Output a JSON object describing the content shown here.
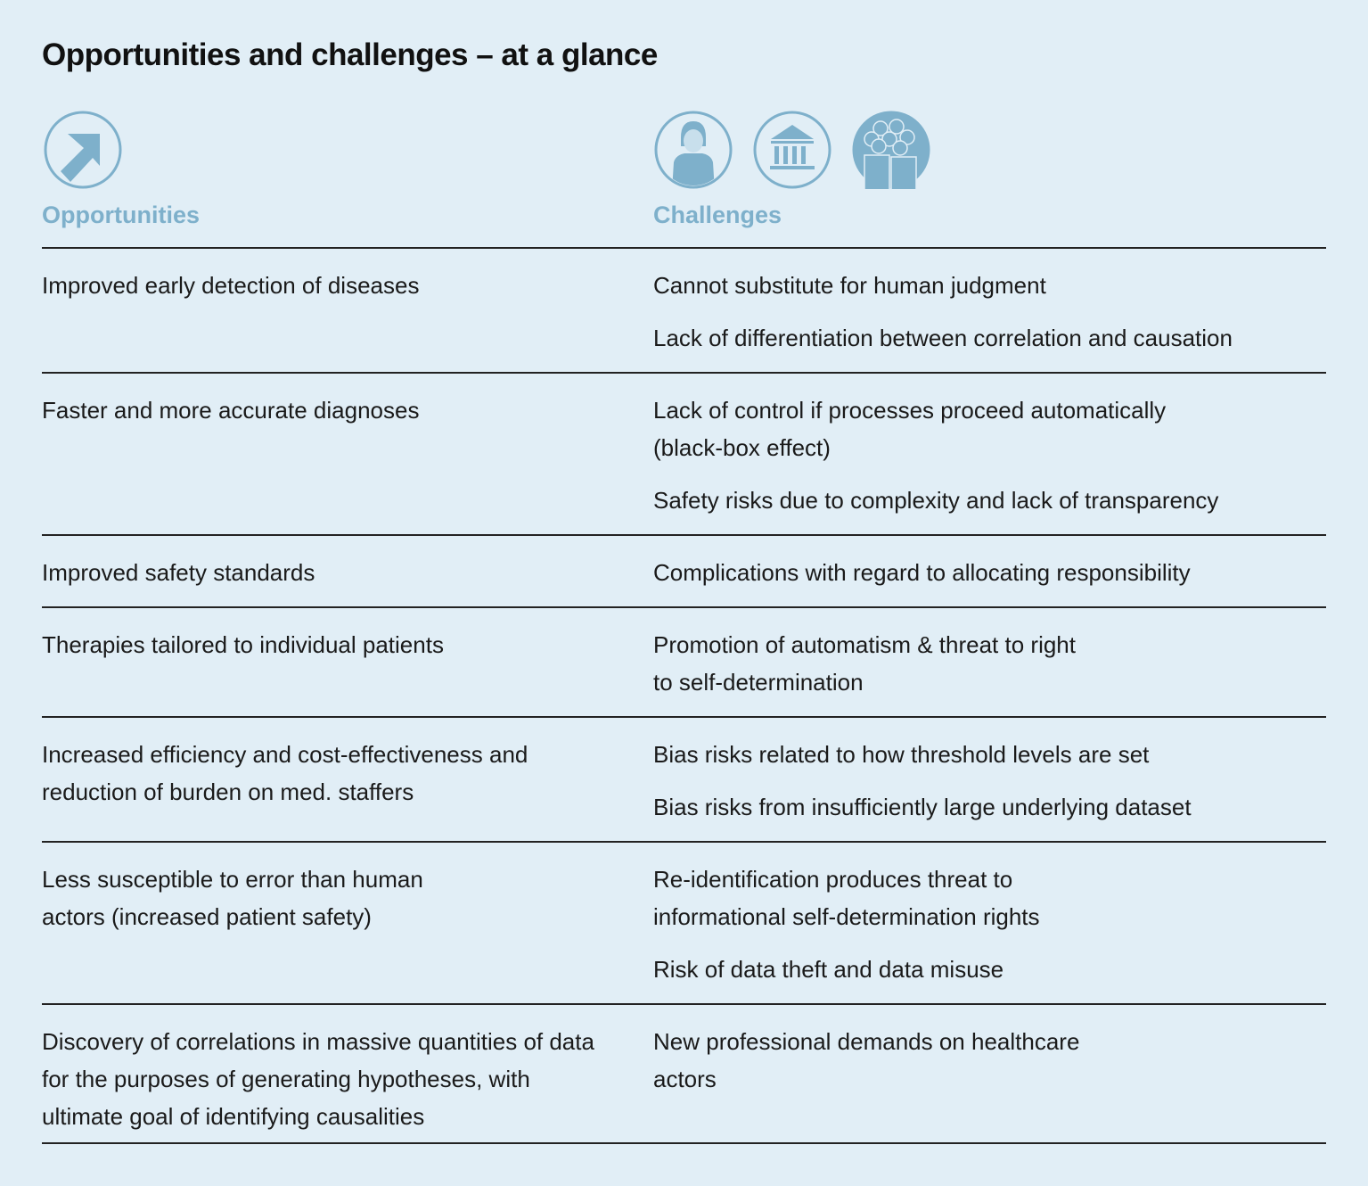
{
  "title": "Opportunities and challenges – at a glance",
  "headers": {
    "opportunities": "Opportunities",
    "challenges": "Challenges"
  },
  "accent_color": "#7eb0cb",
  "icons": [
    "arrow-up-right-icon",
    "person-icon",
    "institution-icon",
    "group-icon"
  ],
  "rows": [
    {
      "opportunity": "Improved early detection of diseases",
      "challenges": [
        "Cannot substitute for human judgment",
        "Lack of differentiation between correlation and causation"
      ]
    },
    {
      "opportunity": "Faster and more accurate diagnoses",
      "challenges": [
        "Lack of control if processes proceed automatically (black-box effect)",
        "Safety risks due to complexity and lack of transparency"
      ]
    },
    {
      "opportunity": "Improved safety standards",
      "challenges": [
        "Complications with regard to allocating responsibility"
      ]
    },
    {
      "opportunity": "Therapies tailored to individual patients",
      "challenges": [
        "Promotion of automatism & threat to right to self-determination"
      ]
    },
    {
      "opportunity": "Increased efficiency and cost-effectiveness and reduction of burden on med. staffers",
      "challenges": [
        "Bias risks related to how threshold levels are set",
        "Bias risks from insufficiently large underlying dataset"
      ]
    },
    {
      "opportunity": "Less susceptible to error than human actors (increased patient safety)",
      "challenges": [
        "Re-identification produces threat to informational self-determination rights",
        "Risk of data theft and data misuse"
      ]
    },
    {
      "opportunity": "Discovery of correlations in massive quantities of data for the purposes of generating hypotheses, with ultimate goal of identifying causalities",
      "challenges": [
        "New professional demands on healthcare actors"
      ]
    }
  ]
}
